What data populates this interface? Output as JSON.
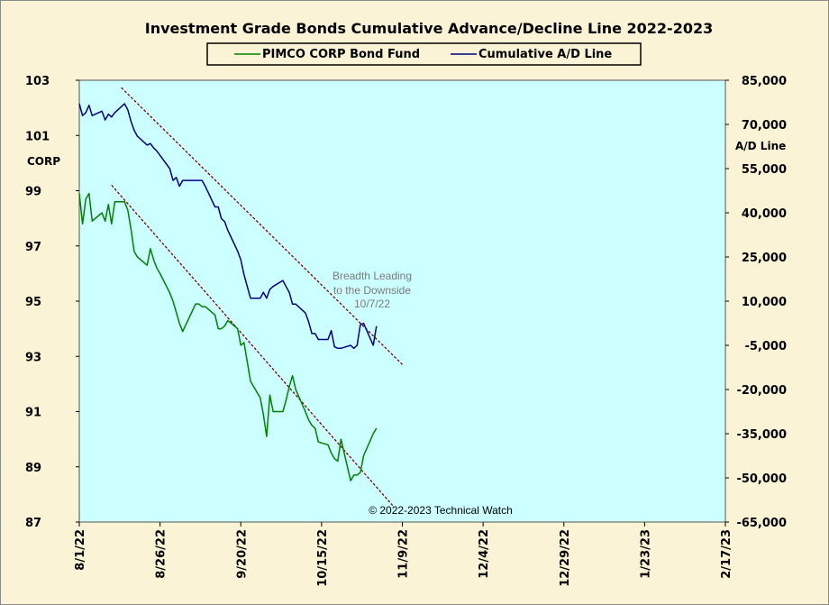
{
  "chart_data": {
    "type": "line",
    "title": "Investment Grade Bonds Cumulative Advance/Decline Line 2022-2023",
    "left_axis": {
      "label": "CORP",
      "min": 87,
      "max": 103,
      "ticks": [
        "103",
        "101",
        "99",
        "97",
        "95",
        "93",
        "91",
        "89",
        "87"
      ]
    },
    "right_axis": {
      "label": "A/D Line",
      "min": -65000,
      "max": 85000,
      "ticks": [
        "85,000",
        "70,000",
        "55,000",
        "40,000",
        "25,000",
        "10,000",
        "-5,000",
        "-20,000",
        "-35,000",
        "-50,000",
        "-65,000"
      ]
    },
    "x_ticks": [
      "8/1/22",
      "8/26/22",
      "9/20/22",
      "10/15/22",
      "11/9/22",
      "12/4/22",
      "12/29/22",
      "1/23/23",
      "2/17/23"
    ],
    "x_tick_dates": [
      "2022-08-01",
      "2022-08-26",
      "2022-09-20",
      "2022-10-15",
      "2022-11-09",
      "2022-12-04",
      "2022-12-29",
      "2023-01-23",
      "2023-02-17"
    ],
    "x_range": [
      "2022-08-01",
      "2023-02-17"
    ],
    "series": [
      {
        "name": "PIMCO CORP Bond Fund",
        "axis": "left",
        "color": "#008000",
        "points": [
          [
            "2022-08-01",
            98.9
          ],
          [
            "2022-08-02",
            97.8
          ],
          [
            "2022-08-03",
            98.7
          ],
          [
            "2022-08-04",
            98.9
          ],
          [
            "2022-08-05",
            97.9
          ],
          [
            "2022-08-08",
            98.2
          ],
          [
            "2022-08-09",
            97.9
          ],
          [
            "2022-08-10",
            98.5
          ],
          [
            "2022-08-11",
            97.8
          ],
          [
            "2022-08-12",
            98.6
          ],
          [
            "2022-08-15",
            98.6
          ],
          [
            "2022-08-16",
            98.3
          ],
          [
            "2022-08-17",
            97.6
          ],
          [
            "2022-08-18",
            96.8
          ],
          [
            "2022-08-19",
            96.6
          ],
          [
            "2022-08-22",
            96.3
          ],
          [
            "2022-08-23",
            96.9
          ],
          [
            "2022-08-24",
            96.5
          ],
          [
            "2022-08-25",
            96.2
          ],
          [
            "2022-08-26",
            96.0
          ],
          [
            "2022-08-29",
            95.3
          ],
          [
            "2022-08-30",
            95.0
          ],
          [
            "2022-08-31",
            94.6
          ],
          [
            "2022-09-01",
            94.2
          ],
          [
            "2022-09-02",
            93.9
          ],
          [
            "2022-09-06",
            94.9
          ],
          [
            "2022-09-07",
            94.9
          ],
          [
            "2022-09-08",
            94.8
          ],
          [
            "2022-09-09",
            94.8
          ],
          [
            "2022-09-12",
            94.5
          ],
          [
            "2022-09-13",
            94.0
          ],
          [
            "2022-09-14",
            94.0
          ],
          [
            "2022-09-15",
            94.1
          ],
          [
            "2022-09-16",
            94.3
          ],
          [
            "2022-09-19",
            94.0
          ],
          [
            "2022-09-20",
            93.4
          ],
          [
            "2022-09-21",
            93.5
          ],
          [
            "2022-09-22",
            92.8
          ],
          [
            "2022-09-23",
            92.1
          ],
          [
            "2022-09-26",
            91.5
          ],
          [
            "2022-09-27",
            90.9
          ],
          [
            "2022-09-28",
            90.1
          ],
          [
            "2022-09-29",
            91.6
          ],
          [
            "2022-09-30",
            91.0
          ],
          [
            "2022-10-03",
            91.0
          ],
          [
            "2022-10-04",
            91.4
          ],
          [
            "2022-10-05",
            91.9
          ],
          [
            "2022-10-06",
            92.3
          ],
          [
            "2022-10-07",
            91.8
          ],
          [
            "2022-10-10",
            91.0
          ],
          [
            "2022-10-11",
            90.7
          ],
          [
            "2022-10-12",
            90.5
          ],
          [
            "2022-10-13",
            90.4
          ],
          [
            "2022-10-14",
            89.9
          ],
          [
            "2022-10-17",
            89.8
          ],
          [
            "2022-10-18",
            89.5
          ],
          [
            "2022-10-19",
            89.3
          ],
          [
            "2022-10-20",
            89.2
          ],
          [
            "2022-10-21",
            90.0
          ],
          [
            "2022-10-24",
            88.5
          ],
          [
            "2022-10-25",
            88.7
          ],
          [
            "2022-10-26",
            88.7
          ],
          [
            "2022-10-27",
            88.8
          ],
          [
            "2022-10-28",
            89.4
          ],
          [
            "2022-10-31",
            90.2
          ],
          [
            "2022-11-01",
            90.4
          ]
        ]
      },
      {
        "name": "Cumulative A/D Line",
        "axis": "right",
        "color": "#000080",
        "points": [
          [
            "2022-08-01",
            77000
          ],
          [
            "2022-08-02",
            73000
          ],
          [
            "2022-08-03",
            74000
          ],
          [
            "2022-08-04",
            76500
          ],
          [
            "2022-08-05",
            73000
          ],
          [
            "2022-08-08",
            74500
          ],
          [
            "2022-08-09",
            71500
          ],
          [
            "2022-08-10",
            73500
          ],
          [
            "2022-08-11",
            72500
          ],
          [
            "2022-08-12",
            74000
          ],
          [
            "2022-08-15",
            77000
          ],
          [
            "2022-08-16",
            75000
          ],
          [
            "2022-08-17",
            71000
          ],
          [
            "2022-08-18",
            68000
          ],
          [
            "2022-08-19",
            66000
          ],
          [
            "2022-08-22",
            63000
          ],
          [
            "2022-08-23",
            63500
          ],
          [
            "2022-08-24",
            62000
          ],
          [
            "2022-08-25",
            61000
          ],
          [
            "2022-08-26",
            59500
          ],
          [
            "2022-08-29",
            55000
          ],
          [
            "2022-08-30",
            51000
          ],
          [
            "2022-08-31",
            52000
          ],
          [
            "2022-09-01",
            49000
          ],
          [
            "2022-09-02",
            51000
          ],
          [
            "2022-09-06",
            51000
          ],
          [
            "2022-09-07",
            51000
          ],
          [
            "2022-09-08",
            51000
          ],
          [
            "2022-09-09",
            49000
          ],
          [
            "2022-09-12",
            42000
          ],
          [
            "2022-09-13",
            42000
          ],
          [
            "2022-09-14",
            38000
          ],
          [
            "2022-09-15",
            37000
          ],
          [
            "2022-09-16",
            34000
          ],
          [
            "2022-09-19",
            27000
          ],
          [
            "2022-09-20",
            24000
          ],
          [
            "2022-09-21",
            19000
          ],
          [
            "2022-09-22",
            15000
          ],
          [
            "2022-09-23",
            11000
          ],
          [
            "2022-09-26",
            11000
          ],
          [
            "2022-09-27",
            13000
          ],
          [
            "2022-09-28",
            11000
          ],
          [
            "2022-09-29",
            14000
          ],
          [
            "2022-09-30",
            15000
          ],
          [
            "2022-10-03",
            17000
          ],
          [
            "2022-10-04",
            15000
          ],
          [
            "2022-10-05",
            13000
          ],
          [
            "2022-10-06",
            9000
          ],
          [
            "2022-10-07",
            9000
          ],
          [
            "2022-10-10",
            6000
          ],
          [
            "2022-10-11",
            3000
          ],
          [
            "2022-10-12",
            -1000
          ],
          [
            "2022-10-13",
            -1000
          ],
          [
            "2022-10-14",
            -3000
          ],
          [
            "2022-10-17",
            -3000
          ],
          [
            "2022-10-18",
            0
          ],
          [
            "2022-10-19",
            -5500
          ],
          [
            "2022-10-20",
            -6000
          ],
          [
            "2022-10-21",
            -6000
          ],
          [
            "2022-10-24",
            -5000
          ],
          [
            "2022-10-25",
            -6000
          ],
          [
            "2022-10-26",
            -5000
          ],
          [
            "2022-10-27",
            2000
          ],
          [
            "2022-10-28",
            2500
          ],
          [
            "2022-10-31",
            -5000
          ],
          [
            "2022-11-01",
            1500
          ]
        ]
      }
    ],
    "trendlines": [
      {
        "axis": "right",
        "color": "#800000",
        "style": "dashed",
        "from": [
          "2022-08-14",
          82500
        ],
        "to": [
          "2022-11-09",
          -11500
        ]
      },
      {
        "axis": "left",
        "color": "#800000",
        "style": "dashed",
        "from": [
          "2022-08-11",
          99.2
        ],
        "to": [
          "2022-11-06",
          87.6
        ]
      }
    ],
    "annotation": [
      "Breadth Leading",
      "to the Downside",
      "10/7/22"
    ],
    "copyright": "© 2022-2023  Technical  Watch",
    "plot_background": "#ccffff",
    "frame_background": "#fbf3d5",
    "legend_placement": "top-center",
    "grid": false
  }
}
